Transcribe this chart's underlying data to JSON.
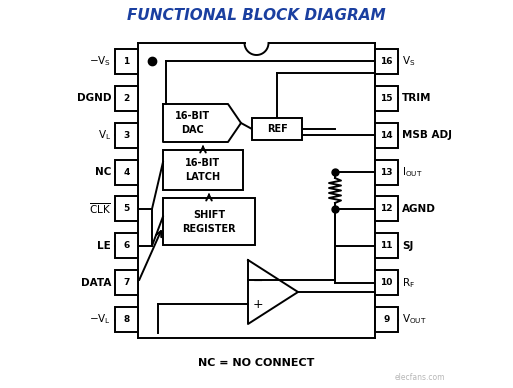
{
  "title": "FUNCTIONAL BLOCK DIAGRAM",
  "title_color": "#1a3fa0",
  "title_fontsize": 11,
  "bg_color": "#ffffff",
  "line_color": "#000000",
  "left_pins": [
    {
      "num": "1",
      "label": "-V_S"
    },
    {
      "num": "2",
      "label": "DGND"
    },
    {
      "num": "3",
      "label": "V_L"
    },
    {
      "num": "4",
      "label": "NC"
    },
    {
      "num": "5",
      "label": "CLK"
    },
    {
      "num": "6",
      "label": "LE"
    },
    {
      "num": "7",
      "label": "DATA"
    },
    {
      "num": "8",
      "label": "-V_L"
    }
  ],
  "right_pins": [
    {
      "num": "16",
      "label": "V_S"
    },
    {
      "num": "15",
      "label": "TRIM"
    },
    {
      "num": "14",
      "label": "MSB ADJ"
    },
    {
      "num": "13",
      "label": "I_OUT"
    },
    {
      "num": "12",
      "label": "AGND"
    },
    {
      "num": "11",
      "label": "SJ"
    },
    {
      "num": "10",
      "label": "R_F"
    },
    {
      "num": "9",
      "label": "V_OUT"
    }
  ],
  "nc_label": "NC = NO CONNECT",
  "watermark": "elecfans.com"
}
